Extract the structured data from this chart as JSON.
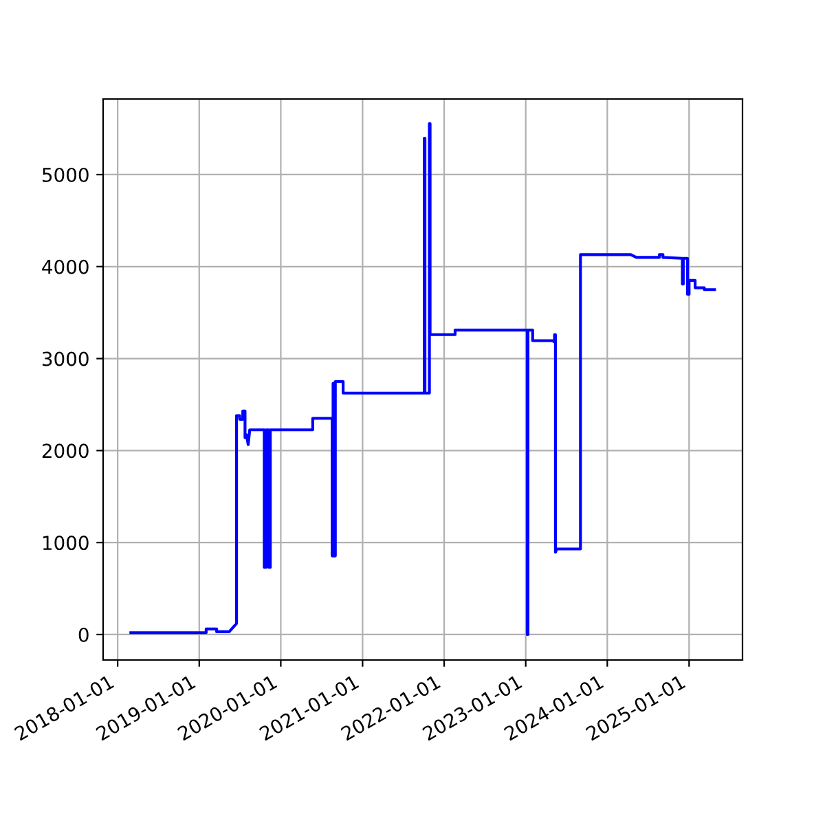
{
  "chart_data": {
    "type": "line",
    "x": [
      "2018-03-01",
      "2019-02-01",
      "2019-02-01",
      "2019-03-20",
      "2019-03-20",
      "2019-05-15",
      "2019-06-17",
      "2019-06-17",
      "2019-07-01",
      "2019-07-01",
      "2019-07-15",
      "2019-07-15",
      "2019-07-25",
      "2019-07-25",
      "2019-08-01",
      "2019-08-08",
      "2019-08-15",
      "2019-10-19",
      "2019-10-19",
      "2019-10-27",
      "2019-10-27",
      "2019-11-08",
      "2019-11-08",
      "2019-11-15",
      "2019-11-15",
      "2020-05-23",
      "2020-05-23",
      "2020-08-18",
      "2020-08-18",
      "2020-08-22",
      "2020-08-22",
      "2020-08-26",
      "2020-08-26",
      "2020-09-01",
      "2020-09-01",
      "2020-10-06",
      "2020-10-06",
      "2021-10-04",
      "2021-10-04",
      "2021-10-07",
      "2021-10-07",
      "2021-10-27",
      "2021-10-27",
      "2021-10-30",
      "2021-10-30",
      "2022-02-19",
      "2022-02-19",
      "2023-01-08",
      "2023-01-08",
      "2023-01-11",
      "2023-01-11",
      "2023-02-01",
      "2023-02-01",
      "2023-05-01",
      "2023-05-10",
      "2023-05-10",
      "2023-05-14",
      "2023-05-14",
      "2023-05-20",
      "2023-09-03",
      "2023-09-03",
      "2024-04-15",
      "2024-05-10",
      "2024-08-21",
      "2024-08-21",
      "2024-09-06",
      "2024-09-06",
      "2024-12-02",
      "2024-12-02",
      "2024-12-06",
      "2024-12-06",
      "2024-12-25",
      "2024-12-25",
      "2025-01-01",
      "2025-01-01",
      "2025-01-28",
      "2025-01-28",
      "2025-03-10",
      "2025-03-10",
      "2025-04-25"
    ],
    "series": [
      {
        "color": "#0000ff",
        "values": [
          20,
          20,
          60,
          60,
          30,
          30,
          120,
          2380,
          2380,
          2340,
          2340,
          2430,
          2430,
          2140,
          2170,
          2065,
          2225,
          2225,
          730,
          730,
          2225,
          2225,
          730,
          730,
          2225,
          2225,
          2350,
          2350,
          855,
          855,
          2730,
          2730,
          855,
          855,
          2750,
          2750,
          2625,
          2625,
          5395,
          5395,
          2625,
          2625,
          5555,
          5555,
          3260,
          3260,
          3310,
          3310,
          0,
          0,
          3310,
          3310,
          3195,
          3195,
          3180,
          3260,
          3260,
          895,
          930,
          930,
          4130,
          4130,
          4100,
          4100,
          4130,
          4130,
          4100,
          4090,
          3810,
          3810,
          4090,
          4090,
          3700,
          3700,
          3850,
          3850,
          3770,
          3770,
          3750,
          3750
        ]
      }
    ],
    "xlim": [
      "2017-10-28",
      "2025-08-28"
    ],
    "xticks": [
      {
        "value": "2018-01-01",
        "label": "2018-01-01"
      },
      {
        "value": "2019-01-01",
        "label": "2019-01-01"
      },
      {
        "value": "2020-01-01",
        "label": "2020-01-01"
      },
      {
        "value": "2021-01-01",
        "label": "2021-01-01"
      },
      {
        "value": "2022-01-01",
        "label": "2022-01-01"
      },
      {
        "value": "2023-01-01",
        "label": "2023-01-01"
      },
      {
        "value": "2024-01-01",
        "label": "2024-01-01"
      },
      {
        "value": "2025-01-01",
        "label": "2025-01-01"
      }
    ],
    "ylim": [
      -277,
      5822
    ],
    "yticks": [
      0,
      1000,
      2000,
      3000,
      4000,
      5000
    ],
    "grid": true
  }
}
